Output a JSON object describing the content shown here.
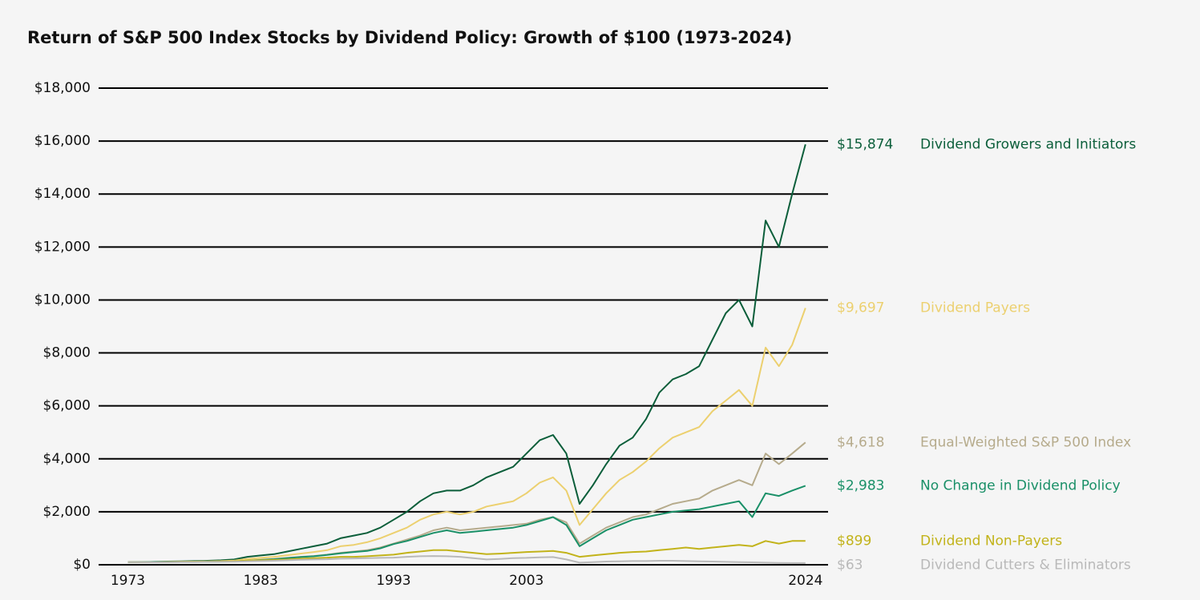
{
  "chart_data": {
    "type": "line",
    "title": "Return of S&P 500 Index Stocks by Dividend Policy: Growth of $100 (1973-2024)",
    "x": [
      1973,
      1974,
      1975,
      1976,
      1977,
      1978,
      1979,
      1980,
      1981,
      1982,
      1983,
      1984,
      1985,
      1986,
      1987,
      1988,
      1989,
      1990,
      1991,
      1992,
      1993,
      1994,
      1995,
      1996,
      1997,
      1998,
      1999,
      2000,
      2001,
      2002,
      2003,
      2004,
      2005,
      2006,
      2007,
      2008,
      2009,
      2010,
      2011,
      2012,
      2013,
      2014,
      2015,
      2016,
      2017,
      2018,
      2019,
      2020,
      2021,
      2022,
      2023,
      2024
    ],
    "xlim": [
      1970.8,
      2025.7
    ],
    "xticks": [
      1973,
      1983,
      1993,
      2003,
      2024
    ],
    "ylim": [
      0,
      18000
    ],
    "yticks": [
      {
        "value": 0,
        "label": "$0"
      },
      {
        "value": 2000,
        "label": "$2,000"
      },
      {
        "value": 4000,
        "label": "$4,000"
      },
      {
        "value": 6000,
        "label": "$6,000"
      },
      {
        "value": 8000,
        "label": "$8,000"
      },
      {
        "value": 10000,
        "label": "$10,000"
      },
      {
        "value": 12000,
        "label": "$12,000"
      },
      {
        "value": 14000,
        "label": "$14,000"
      },
      {
        "value": 16000,
        "label": "$16,000"
      },
      {
        "value": 18000,
        "label": "$18,000"
      }
    ],
    "grid": true,
    "series": [
      {
        "name": "Dividend Growers and Initiators",
        "color": "#0b5e3a",
        "last_label": "$15,874",
        "values": [
          100,
          100,
          110,
          120,
          130,
          140,
          150,
          170,
          200,
          300,
          350,
          400,
          500,
          600,
          700,
          800,
          1000,
          1100,
          1200,
          1400,
          1700,
          2000,
          2400,
          2700,
          2800,
          2800,
          3000,
          3300,
          3500,
          3700,
          4200,
          4700,
          4900,
          4200,
          2300,
          3000,
          3800,
          4500,
          4800,
          5500,
          6500,
          7000,
          7200,
          7500,
          8500,
          9500,
          10000,
          9000,
          13000,
          12000,
          14000,
          15874
        ]
      },
      {
        "name": "Dividend Payers",
        "color": "#ecd06f",
        "last_label": "$9,697",
        "values": [
          100,
          100,
          105,
          110,
          115,
          120,
          130,
          140,
          160,
          220,
          260,
          300,
          360,
          420,
          480,
          550,
          700,
          750,
          850,
          1000,
          1200,
          1400,
          1700,
          1900,
          2000,
          1900,
          2000,
          2200,
          2300,
          2400,
          2700,
          3100,
          3300,
          2800,
          1500,
          2100,
          2700,
          3200,
          3500,
          3900,
          4400,
          4800,
          5000,
          5200,
          5800,
          6200,
          6600,
          6000,
          8200,
          7500,
          8300,
          9697
        ]
      },
      {
        "name": "Equal-Weighted S&P 500 Index",
        "color": "#b6ab8c",
        "last_label": "$4,618",
        "values": [
          100,
          100,
          102,
          105,
          108,
          110,
          115,
          120,
          130,
          160,
          190,
          220,
          260,
          300,
          330,
          380,
          450,
          500,
          550,
          650,
          800,
          950,
          1100,
          1300,
          1400,
          1300,
          1350,
          1400,
          1450,
          1500,
          1550,
          1700,
          1800,
          1600,
          800,
          1100,
          1400,
          1600,
          1800,
          1900,
          2100,
          2300,
          2400,
          2500,
          2800,
          3000,
          3200,
          3000,
          4200,
          3800,
          4200,
          4618
        ]
      },
      {
        "name": "No Change in Dividend Policy",
        "color": "#1a9068",
        "last_label": "$2,983",
        "values": [
          100,
          100,
          102,
          104,
          106,
          108,
          112,
          118,
          125,
          150,
          180,
          210,
          250,
          290,
          320,
          370,
          430,
          480,
          520,
          620,
          780,
          900,
          1050,
          1200,
          1300,
          1200,
          1250,
          1300,
          1350,
          1400,
          1500,
          1650,
          1800,
          1500,
          700,
          1000,
          1300,
          1500,
          1700,
          1800,
          1900,
          2000,
          2050,
          2100,
          2200,
          2300,
          2400,
          1800,
          2700,
          2600,
          2800,
          2983
        ]
      },
      {
        "name": "Dividend Non-Payers",
        "color": "#c2b31a",
        "last_label": "$899",
        "values": [
          100,
          95,
          90,
          100,
          105,
          110,
          115,
          120,
          130,
          160,
          170,
          180,
          200,
          230,
          250,
          270,
          300,
          300,
          320,
          350,
          380,
          450,
          500,
          550,
          550,
          500,
          450,
          400,
          420,
          450,
          480,
          500,
          520,
          450,
          300,
          350,
          400,
          450,
          480,
          500,
          550,
          600,
          650,
          600,
          650,
          700,
          750,
          700,
          900,
          800,
          900,
          899
        ]
      },
      {
        "name": "Dividend Cutters & Eliminators",
        "color": "#b9b9b9",
        "last_label": "$63",
        "values": [
          100,
          95,
          90,
          95,
          100,
          100,
          105,
          110,
          115,
          130,
          140,
          150,
          170,
          190,
          200,
          210,
          230,
          240,
          250,
          260,
          270,
          300,
          320,
          330,
          320,
          300,
          250,
          200,
          220,
          250,
          260,
          280,
          290,
          200,
          80,
          100,
          120,
          130,
          140,
          140,
          150,
          150,
          140,
          130,
          120,
          110,
          100,
          90,
          80,
          70,
          65,
          63
        ]
      }
    ]
  }
}
